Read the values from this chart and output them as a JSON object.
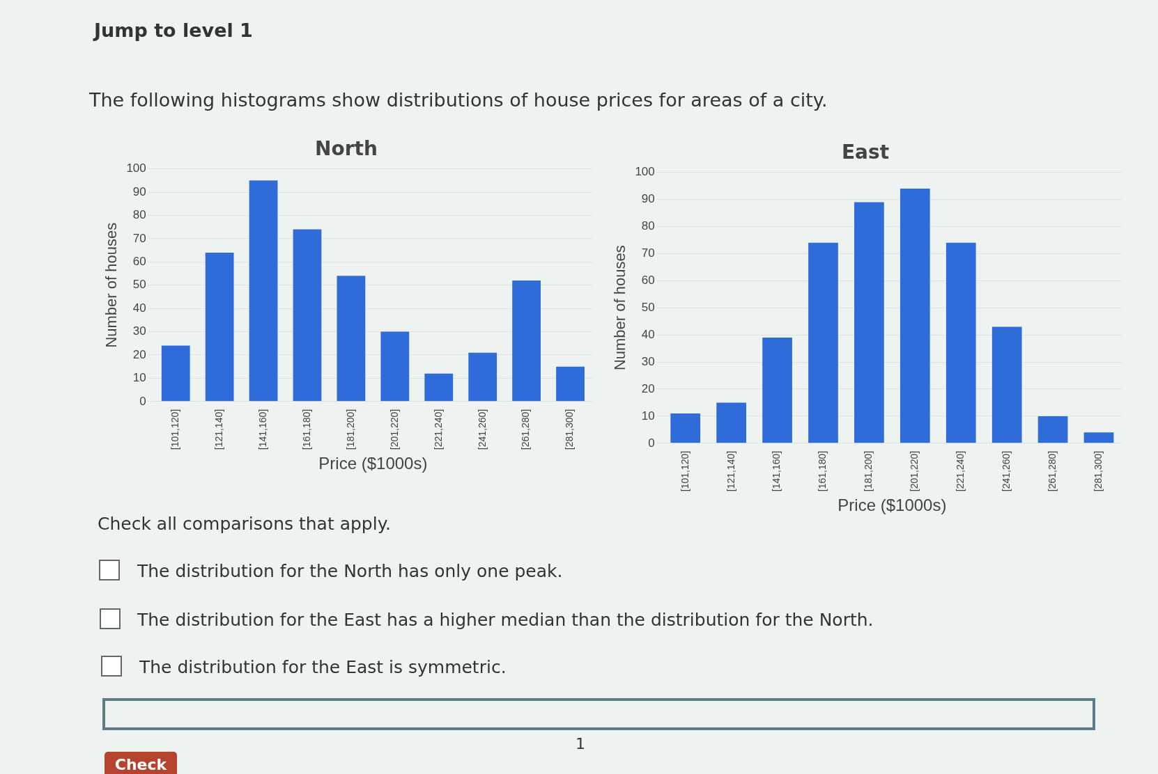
{
  "chart_data": [
    {
      "type": "bar",
      "title": "North",
      "xlabel": "Price ($1000s)",
      "ylabel": "Number of houses",
      "categories": [
        "[101,120]",
        "[121,140]",
        "[141,160]",
        "[161,180]",
        "[181,200]",
        "[201,220]",
        "[221,240]",
        "[241,260]",
        "[261,280]",
        "[281,300]"
      ],
      "values": [
        24,
        64,
        95,
        74,
        54,
        30,
        12,
        21,
        52,
        15
      ],
      "color": "#2f6bd9",
      "ylim": [
        0,
        100
      ],
      "yticks": [
        0,
        10,
        20,
        30,
        40,
        50,
        60,
        70,
        80,
        90,
        100
      ],
      "grid": "y",
      "legend": false,
      "annotations": [
        "Jump to level 1",
        "The following histograms show distributions of house prices for areas of a city.",
        "Check all comparisons that apply.",
        "The distribution for the North has only one peak.",
        "The distribution for the East has a higher median than the distribution for the North.",
        "The distribution for the East is symmetric.",
        "1",
        "Check"
      ]
    },
    {
      "type": "bar",
      "title": "East",
      "xlabel": "Price ($1000s)",
      "ylabel": "Number of houses",
      "categories": [
        "[101,120]",
        "[121,140]",
        "[141,160]",
        "[161,180]",
        "[181,200]",
        "[201,220]",
        "[221,240]",
        "[241,260]",
        "[261,280]",
        "[281,300]"
      ],
      "values": [
        11,
        15,
        39,
        74,
        89,
        94,
        74,
        43,
        10,
        4
      ],
      "color": "#2f6bd9",
      "ylim": [
        0,
        100
      ],
      "yticks": [
        0,
        10,
        20,
        30,
        40,
        50,
        60,
        70,
        80,
        90,
        100
      ],
      "grid": "y",
      "legend": false
    }
  ]
}
